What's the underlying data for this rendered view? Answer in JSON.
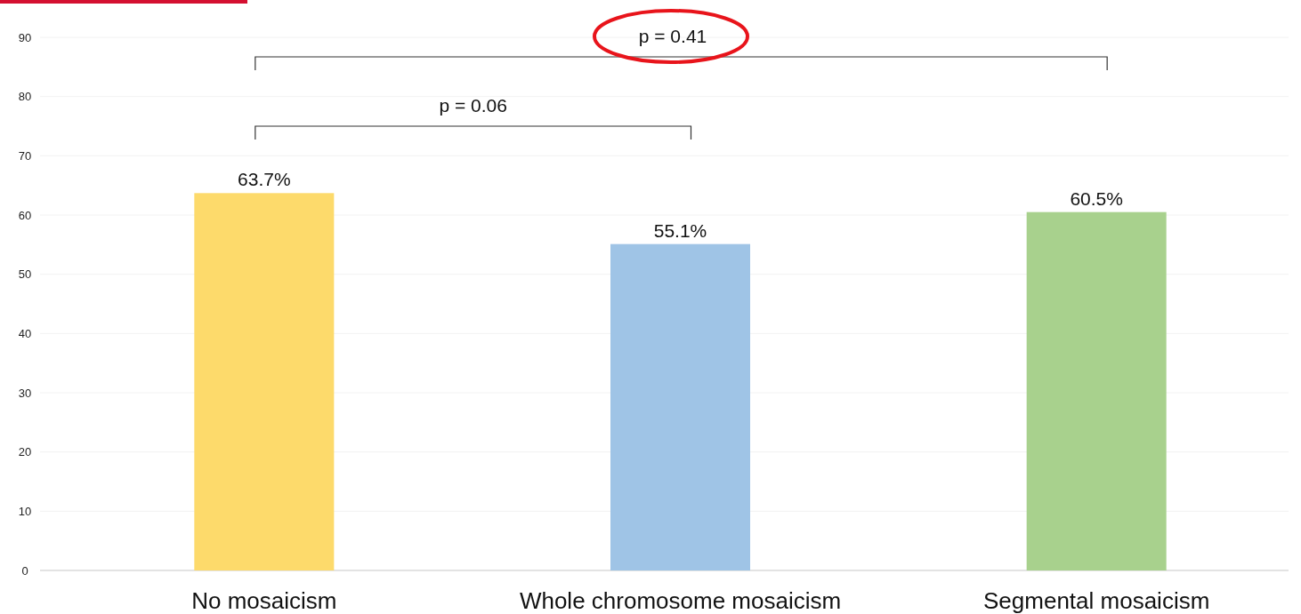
{
  "chart_data": {
    "type": "bar",
    "categories": [
      "No mosaicism",
      "Whole chromosome mosaicism",
      "Segmental mosaicism"
    ],
    "values": [
      63.7,
      55.1,
      60.5
    ],
    "colors": [
      "#fdda6b",
      "#9fc4e6",
      "#a8d18d"
    ],
    "value_labels": [
      "63.7%",
      "55.1%",
      "60.5%"
    ],
    "ylim": [
      0,
      90
    ],
    "yticks": [
      0,
      10,
      20,
      30,
      40,
      50,
      60,
      70,
      80,
      90
    ],
    "grid": "y",
    "annotations": [
      "p = 0.41",
      "p = 0.06"
    ]
  }
}
